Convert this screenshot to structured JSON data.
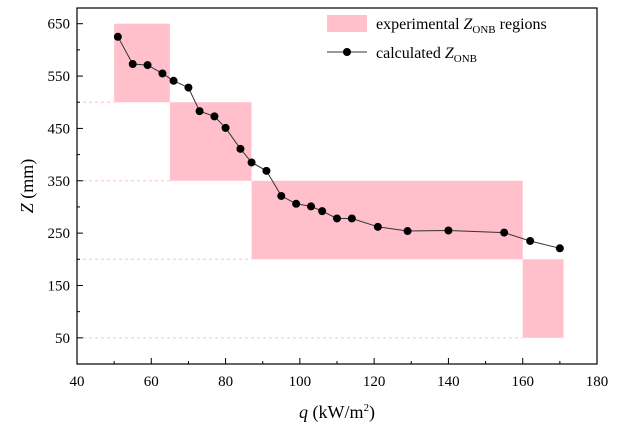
{
  "chart_data": {
    "type": "scatter",
    "xlabel": {
      "symbol": "q",
      "unit_prefix": " (kW/m",
      "unit_sup": "2",
      "unit_suffix": ")"
    },
    "ylabel": {
      "symbol": "Z",
      "unit": " (mm)"
    },
    "xlim": [
      40,
      180
    ],
    "ylim": [
      0,
      680
    ],
    "x_ticks": [
      40,
      60,
      80,
      100,
      120,
      140,
      160,
      180
    ],
    "y_ticks": [
      50,
      150,
      250,
      350,
      450,
      550,
      650
    ],
    "legend": {
      "placement": "top-right",
      "regions_label": {
        "prefix": "experimental ",
        "symbol": "Z",
        "sub": "ONB",
        "suffix": " regions"
      },
      "points_label": {
        "prefix": "calculated ",
        "symbol": "Z",
        "sub": "ONB",
        "suffix": ""
      }
    },
    "regions": [
      {
        "x": [
          50,
          65
        ],
        "y": [
          500,
          650
        ]
      },
      {
        "x": [
          65,
          87
        ],
        "y": [
          350,
          500
        ]
      },
      {
        "x": [
          87,
          160
        ],
        "y": [
          200,
          350
        ]
      },
      {
        "x": [
          160,
          171
        ],
        "y": [
          50,
          200
        ]
      }
    ],
    "series": [
      {
        "x": [
          51,
          55,
          59,
          63,
          66,
          70,
          73,
          77,
          80,
          84,
          87,
          91,
          95,
          99,
          103,
          106,
          110,
          114,
          121,
          129,
          140,
          155,
          162,
          170
        ],
        "y": [
          625,
          573,
          571,
          555,
          541,
          528,
          483,
          473,
          451,
          411,
          385,
          369,
          321,
          306,
          301,
          292,
          278,
          278,
          262,
          254,
          255,
          251,
          235,
          221
        ]
      }
    ],
    "colors": {
      "region": "#ffc0cb",
      "line": "#333333",
      "marker": "#000000",
      "guide": "#ffc0cb"
    }
  }
}
